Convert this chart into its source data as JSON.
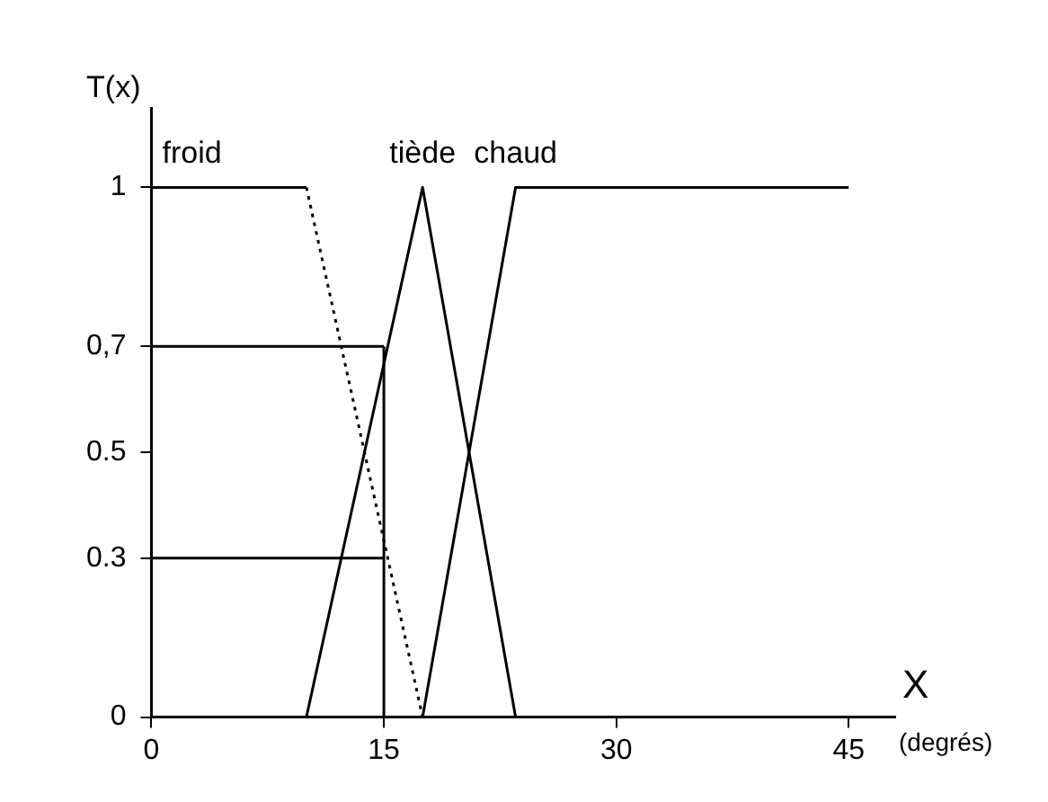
{
  "chart_data": {
    "type": "line",
    "ylabel": "T(x)",
    "xlabel": "X",
    "annotations": [
      "(degrés)"
    ],
    "xlim": [
      0,
      48
    ],
    "xticks": [
      0,
      15,
      30,
      45
    ],
    "ylim": [
      0,
      1.15
    ],
    "yticks": [
      0,
      0.3,
      0.5,
      {
        "value": 0.7,
        "label": "0,7"
      },
      1
    ],
    "grid": false,
    "legend": false,
    "marker": "none",
    "line_style": "solid",
    "series": [
      {
        "name": "froid",
        "color": "#000000",
        "x": [
          0,
          10
        ],
        "values": [
          1,
          1
        ]
      },
      {
        "color": "#000000",
        "x": [
          10,
          17.5
        ],
        "values": [
          1,
          0
        ],
        "line_style": "dotted"
      },
      {
        "name": "tiède",
        "color": "#000000",
        "x": [
          10,
          17.5,
          23.5
        ],
        "values": [
          0,
          1,
          0
        ]
      },
      {
        "name": "chaud",
        "color": "#000000",
        "x": [
          17.5,
          23.5,
          45
        ],
        "values": [
          0,
          1,
          1
        ]
      },
      {
        "color": "#000000",
        "x": [
          0,
          15
        ],
        "values": [
          0.7,
          0.7
        ]
      },
      {
        "color": "#000000",
        "x": [
          0,
          15
        ],
        "values": [
          0.3,
          0.3
        ]
      },
      {
        "color": "#000000",
        "x": [
          15,
          15
        ],
        "values": [
          0,
          0.7
        ]
      }
    ]
  }
}
